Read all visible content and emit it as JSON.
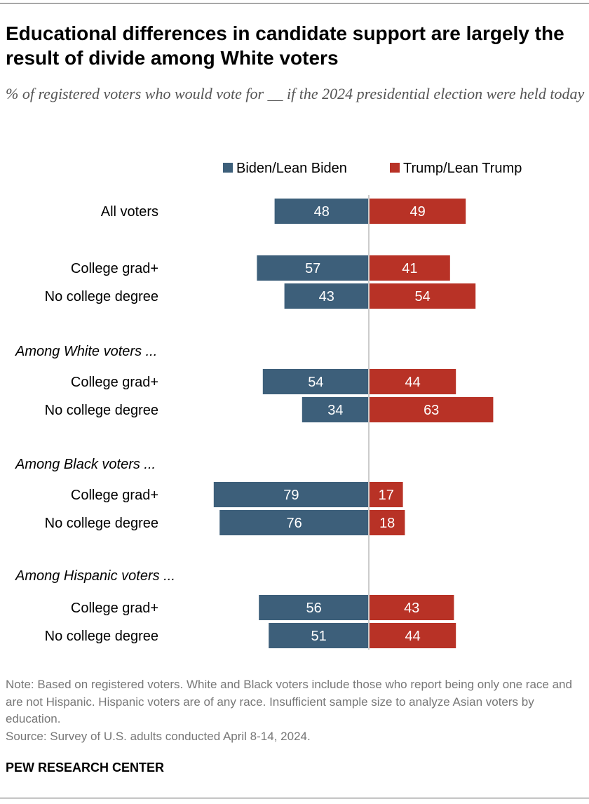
{
  "title": "Educational differences in candidate support are largely the result of divide among White voters",
  "subtitle": "% of registered voters who would vote for __ if the 2024 presidential election were held today",
  "note": "Note: Based on registered voters. White and Black voters include those who report being only one race and are not Hispanic. Hispanic voters are of any race. Insufficient sample size to analyze Asian voters by education.",
  "source": "Source: Survey of U.S. adults conducted April 8-14, 2024.",
  "brand": "PEW RESEARCH CENTER",
  "chart_data": {
    "type": "bar",
    "orientation": "horizontal-diverging",
    "colors": {
      "Biden/Lean Biden": "#3d5f7a",
      "Trump/Lean Trump": "#b83226"
    },
    "legend_placement": "top",
    "legend": [
      "Biden/Lean Biden",
      "Trump/Lean Trump"
    ],
    "rows": [
      {
        "label": "All voters",
        "biden": 48,
        "trump": 49
      },
      {
        "group": "Among White voters ..."
      },
      {
        "label": "College grad+",
        "biden": 57,
        "trump": 41
      },
      {
        "label": "No college degree",
        "biden": 43,
        "trump": 54
      },
      {
        "group": "Among White voters ..."
      },
      {
        "label": "College grad+",
        "biden": 54,
        "trump": 44
      },
      {
        "label": "No college degree",
        "biden": 34,
        "trump": 63
      },
      {
        "group": "Among Black voters ..."
      },
      {
        "label": "College grad+",
        "biden": 79,
        "trump": 17
      },
      {
        "label": "No college degree",
        "biden": 76,
        "trump": 18
      },
      {
        "group": "Among Hispanic voters ..."
      },
      {
        "label": "College grad+",
        "biden": 56,
        "trump": 43
      },
      {
        "label": "No college degree",
        "biden": 51,
        "trump": 44
      }
    ]
  }
}
